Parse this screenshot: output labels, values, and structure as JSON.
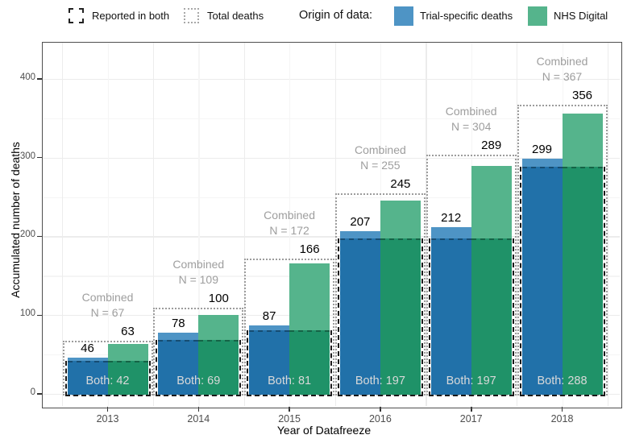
{
  "legend": {
    "reported_in_both": "Reported in both",
    "total_deaths": "Total deaths",
    "origin_title": "Origin of data:",
    "trial_label": "Trial-specific deaths",
    "nhs_label": "NHS Digital"
  },
  "labels": {
    "combined_word": "Combined",
    "n_prefix": "N = ",
    "both_prefix": "Both: "
  },
  "colors": {
    "trial_light": "#4e94c5",
    "trial_dark": "#2171a9",
    "nhs_light": "#55b48c",
    "nhs_dark": "#1f9268",
    "combined_text": "#9e9e9e",
    "both_text": "#d9d9d9",
    "dashed_outline": "#1a1a1a",
    "dotted_outline": "#9c9c9c",
    "grid_major": "#ececec",
    "grid_minor": "#f5f5f5",
    "panel_border": "#4f4f4f",
    "tick_text": "#4d4d4d"
  },
  "chart_data": {
    "type": "bar",
    "title": "",
    "xlabel": "Year of Datafreeze",
    "ylabel": "Accumulated number of deaths",
    "ylim": [
      0,
      447
    ],
    "yticks": [
      0,
      100,
      200,
      300,
      400
    ],
    "yticks_minor": [
      50,
      150,
      250,
      350
    ],
    "grid": true,
    "legend_position": "top",
    "categories": [
      "2013",
      "2014",
      "2015",
      "2016",
      "2017",
      "2018"
    ],
    "series": [
      {
        "name": "Trial-specific deaths",
        "values": [
          46,
          78,
          87,
          207,
          212,
          299
        ]
      },
      {
        "name": "NHS Digital",
        "values": [
          63,
          100,
          166,
          245,
          289,
          356
        ]
      },
      {
        "name": "Reported in both",
        "values": [
          42,
          69,
          81,
          197,
          197,
          288
        ]
      },
      {
        "name": "Combined total deaths",
        "values": [
          67,
          109,
          172,
          255,
          304,
          367
        ]
      }
    ]
  }
}
